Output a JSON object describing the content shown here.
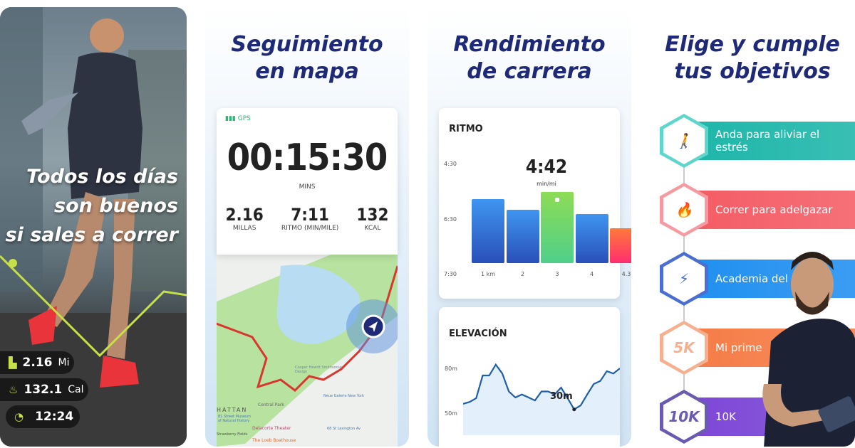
{
  "panel1": {
    "headline": "Todos los días\nson buenos\nsi sales a correr",
    "stats": [
      {
        "icon": "map-icon",
        "value": "2.16",
        "unit": "Mi"
      },
      {
        "icon": "flame-icon",
        "value": "132.1",
        "unit": "Cal"
      },
      {
        "icon": "speedometer-icon",
        "value": "12:24",
        "unit": ""
      }
    ]
  },
  "panel2": {
    "title": "Seguimiento\nen mapa",
    "gps": "GPS",
    "timer": "00:15:30",
    "timer_unit": "MINS",
    "stats": [
      {
        "value": "2.16",
        "label": "MILLAS"
      },
      {
        "value": "7:11",
        "label": "RITMO (MIN/MILE)"
      },
      {
        "value": "132",
        "label": "KCAL"
      }
    ],
    "map_labels": [
      "HATTAN",
      "Central Park",
      "Delacorte Theater",
      "The Loeb Boathouse",
      "Cooper Hewitt Smithsonian Design",
      "Neue Galerie New York",
      "68 St Lexington Av",
      "Strawberry Fields",
      "81 Street Museum of Natural History"
    ]
  },
  "panel3": {
    "title": "Rendimiento\nde carrera",
    "pace": {
      "title": "RITMO",
      "highlight": "4:42",
      "highlight_unit": "min/mi",
      "y_ticks": [
        "4:30",
        "6:30",
        "7:30"
      ],
      "categories": [
        "1 km",
        "2",
        "3",
        "4",
        "4.3"
      ],
      "fill": [
        0.68,
        0.57,
        0.76,
        0.52,
        0.37
      ],
      "colors": [
        "#2f6fe0",
        "#2f6fe0",
        "#6fd56a",
        "#2f6fe0",
        "#ff5a4a"
      ],
      "highlight_index": 2
    },
    "elevation": {
      "title": "ELEVACIÓN",
      "y_ticks": [
        "80m",
        "50m"
      ],
      "annotation": "30m",
      "values": [
        56.7,
        58,
        60.5,
        75.7,
        75.7,
        83,
        77,
        65,
        61,
        63,
        61,
        59,
        65,
        65,
        63,
        67.6,
        60.5,
        53,
        55.7,
        63,
        70,
        72,
        78.6,
        77,
        80.5
      ],
      "ylim": [
        50,
        80
      ],
      "color": "#1f5fa8"
    }
  },
  "panel4": {
    "title": "Elige y cumple\ntus objetivos",
    "goals": [
      {
        "label": "Anda para aliviar el estrés",
        "icon": "walking-person-icon",
        "glyph": "🚶",
        "color": "#1bb5a8",
        "hex": "#5fd6cc"
      },
      {
        "label": "Correr para adelgazar",
        "icon": "flame-icon",
        "glyph": "🔥",
        "color": "#f45a63",
        "hex": "#f59aa0"
      },
      {
        "label": "Academia del ri",
        "icon": "lightning-icon",
        "glyph": "⚡",
        "color": "#1d8ef0",
        "hex": "#4a6fd0"
      },
      {
        "label": "Mi prime",
        "icon": "5k-badge-icon",
        "glyph": "5K",
        "color": "#f57b45",
        "hex": "#f5b090"
      },
      {
        "label": "10K",
        "icon": "10k-badge-icon",
        "glyph": "10K",
        "color": "#7b45d6",
        "hex": "#6a5ab0"
      }
    ]
  }
}
